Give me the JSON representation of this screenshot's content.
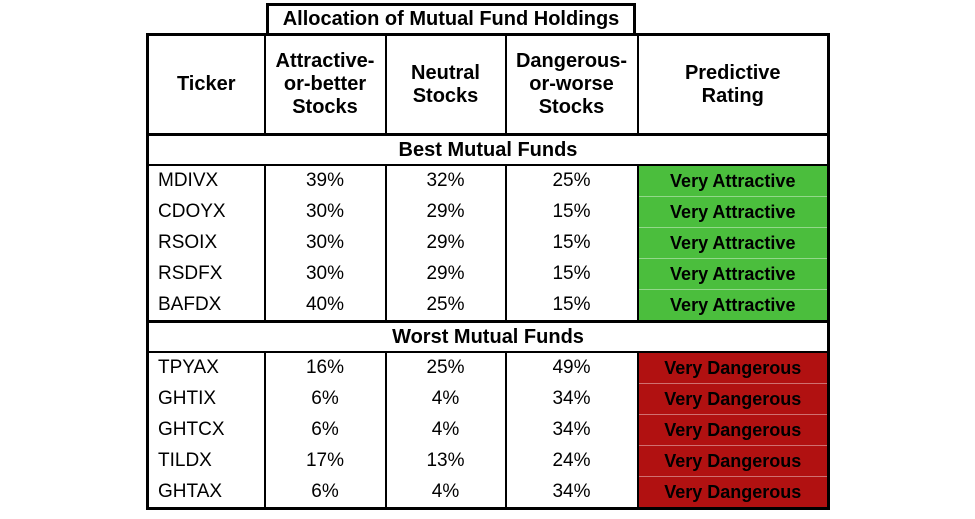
{
  "chart_data": {
    "type": "table",
    "title": "Allocation of Mutual Fund Holdings",
    "column_headers": {
      "ticker": "Ticker",
      "attractive": "Attractive-\nor-better\nStocks",
      "neutral": "Neutral\nStocks",
      "dangerous": "Dangerous-\nor-worse\nStocks",
      "rating": "Predictive\nRating"
    },
    "sections": [
      {
        "label": "Best Mutual Funds",
        "rating_bg": "#4BBE3D",
        "rows": [
          {
            "ticker": "MDIVX",
            "attractive": "39%",
            "neutral": "32%",
            "dangerous": "25%",
            "rating": "Very Attractive"
          },
          {
            "ticker": "CDOYX",
            "attractive": "30%",
            "neutral": "29%",
            "dangerous": "15%",
            "rating": "Very Attractive"
          },
          {
            "ticker": "RSOIX",
            "attractive": "30%",
            "neutral": "29%",
            "dangerous": "15%",
            "rating": "Very Attractive"
          },
          {
            "ticker": "RSDFX",
            "attractive": "30%",
            "neutral": "29%",
            "dangerous": "15%",
            "rating": "Very Attractive"
          },
          {
            "ticker": "BAFDX",
            "attractive": "40%",
            "neutral": "25%",
            "dangerous": "15%",
            "rating": "Very Attractive"
          }
        ]
      },
      {
        "label": "Worst Mutual Funds",
        "rating_bg": "#B11111",
        "rows": [
          {
            "ticker": "TPYAX",
            "attractive": "16%",
            "neutral": "25%",
            "dangerous": "49%",
            "rating": "Very Dangerous"
          },
          {
            "ticker": "GHTIX",
            "attractive": "6%",
            "neutral": "4%",
            "dangerous": "34%",
            "rating": "Very Dangerous"
          },
          {
            "ticker": "GHTCX",
            "attractive": "6%",
            "neutral": "4%",
            "dangerous": "34%",
            "rating": "Very Dangerous"
          },
          {
            "ticker": "TILDX",
            "attractive": "17%",
            "neutral": "13%",
            "dangerous": "24%",
            "rating": "Very Dangerous"
          },
          {
            "ticker": "GHTAX",
            "attractive": "6%",
            "neutral": "4%",
            "dangerous": "34%",
            "rating": "Very Dangerous"
          }
        ]
      }
    ],
    "colors": {
      "border": "#000000",
      "background": "#ffffff",
      "text": "#000000",
      "very_attractive_bg": "#4BBE3D",
      "very_dangerous_bg": "#B11111"
    },
    "layout": {
      "grid": "on",
      "title_position": "top, spanning middle three columns"
    }
  }
}
